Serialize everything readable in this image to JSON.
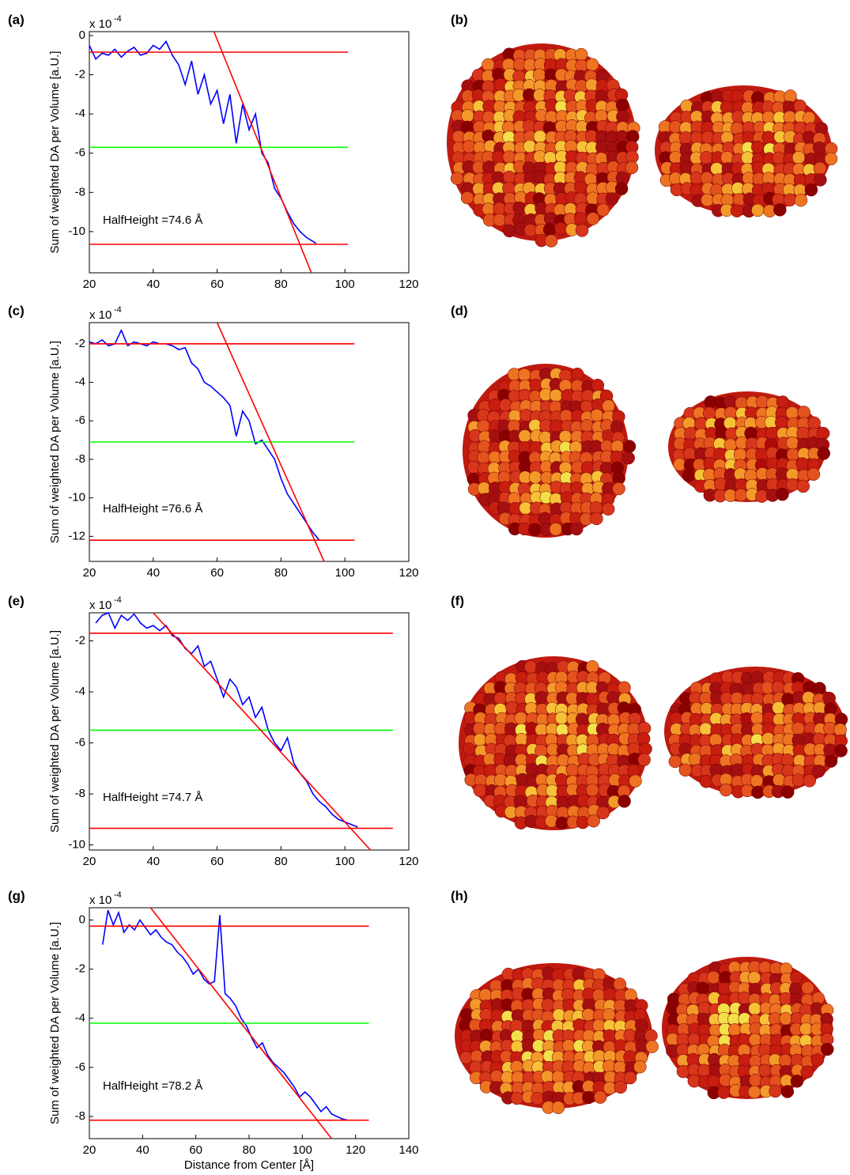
{
  "chart_data": [
    {
      "type": "line",
      "panel": "(a)",
      "ylabel": "Sum of weighted DA per Volume [a.U.]",
      "y_scale": "x 10",
      "y_scale_exponent": "-4",
      "annotation": "HalfHeight =74.6 Å",
      "xlim": [
        20,
        120
      ],
      "xticks": [
        20,
        40,
        60,
        80,
        100,
        120
      ],
      "ylim": [
        -12.1,
        0.2
      ],
      "yticks": [
        -10,
        -8,
        -6,
        -4,
        -2,
        0
      ],
      "series": [
        {
          "color": "#0000ff",
          "x": [
            20,
            22,
            24,
            26,
            28,
            30,
            32,
            34,
            36,
            38,
            40,
            42,
            44,
            46,
            48,
            50,
            52,
            54,
            56,
            58,
            60,
            62,
            64,
            66,
            68,
            70,
            72,
            74,
            76,
            78,
            80,
            82,
            84,
            86,
            88,
            90,
            91
          ],
          "values": [
            -0.5,
            -1.2,
            -0.9,
            -1.0,
            -0.7,
            -1.1,
            -0.8,
            -0.6,
            -1.0,
            -0.9,
            -0.5,
            -0.7,
            -0.3,
            -1.0,
            -1.5,
            -2.5,
            -1.3,
            -3.0,
            -2.0,
            -3.5,
            -2.8,
            -4.5,
            -3.0,
            -5.5,
            -3.5,
            -4.8,
            -4.0,
            -6.0,
            -6.5,
            -7.8,
            -8.3,
            -9.0,
            -9.6,
            -10.0,
            -10.3,
            -10.5,
            -10.6
          ]
        },
        {
          "color": "#ff0000",
          "x": [
            20,
            101
          ],
          "values": [
            -0.85,
            -0.85
          ]
        },
        {
          "color": "#ff0000",
          "x": [
            20,
            101
          ],
          "values": [
            -10.65,
            -10.65
          ]
        },
        {
          "color": "#00ff00",
          "x": [
            20,
            101
          ],
          "values": [
            -5.7,
            -5.7
          ]
        },
        {
          "color": "#ff0000",
          "x": [
            59,
            89.5
          ],
          "values": [
            0.2,
            -12.1
          ]
        }
      ]
    },
    {
      "type": "line",
      "panel": "(c)",
      "ylabel": "Sum of weighted DA per Volume [a.U.]",
      "y_scale": "x 10",
      "y_scale_exponent": "-4",
      "annotation": "HalfHeight =76.6 Å",
      "xlim": [
        20,
        120
      ],
      "xticks": [
        20,
        40,
        60,
        80,
        100,
        120
      ],
      "ylim": [
        -13.3,
        -0.9
      ],
      "yticks": [
        -12,
        -10,
        -8,
        -6,
        -4,
        -2
      ],
      "series": [
        {
          "color": "#0000ff",
          "x": [
            20,
            22,
            24,
            26,
            28,
            30,
            32,
            34,
            36,
            38,
            40,
            42,
            44,
            46,
            48,
            50,
            52,
            54,
            56,
            58,
            60,
            62,
            64,
            66,
            68,
            70,
            72,
            74,
            76,
            78,
            80,
            82,
            84,
            86,
            88,
            90,
            92
          ],
          "values": [
            -1.9,
            -2.0,
            -1.8,
            -2.1,
            -2.0,
            -1.3,
            -2.1,
            -1.9,
            -2.0,
            -2.1,
            -1.9,
            -2.0,
            -2.0,
            -2.1,
            -2.3,
            -2.2,
            -3.0,
            -3.3,
            -4.0,
            -4.2,
            -4.5,
            -4.8,
            -5.2,
            -6.8,
            -5.5,
            -6.0,
            -7.2,
            -7.0,
            -7.5,
            -8.0,
            -9.0,
            -9.8,
            -10.3,
            -10.8,
            -11.3,
            -11.8,
            -12.2
          ]
        },
        {
          "color": "#ff0000",
          "x": [
            20,
            103
          ],
          "values": [
            -2.0,
            -2.0
          ]
        },
        {
          "color": "#ff0000",
          "x": [
            20,
            103
          ],
          "values": [
            -12.2,
            -12.2
          ]
        },
        {
          "color": "#00ff00",
          "x": [
            20,
            103
          ],
          "values": [
            -7.1,
            -7.1
          ]
        },
        {
          "color": "#ff0000",
          "x": [
            60,
            93.5
          ],
          "values": [
            -0.9,
            -13.3
          ]
        }
      ]
    },
    {
      "type": "line",
      "panel": "(e)",
      "ylabel": "Sum of weighted DA per Volume [a.U.]",
      "y_scale": "x 10",
      "y_scale_exponent": "-4",
      "annotation": "HalfHeight =74.7 Å",
      "xlim": [
        20,
        120
      ],
      "xticks": [
        20,
        40,
        60,
        80,
        100,
        120
      ],
      "ylim": [
        -10.2,
        -0.9
      ],
      "yticks": [
        -10,
        -8,
        -6,
        -4,
        -2
      ],
      "series": [
        {
          "color": "#0000ff",
          "x": [
            22,
            24,
            26,
            28,
            30,
            32,
            34,
            36,
            38,
            40,
            42,
            44,
            46,
            48,
            50,
            52,
            54,
            56,
            58,
            60,
            62,
            64,
            66,
            68,
            70,
            72,
            74,
            76,
            78,
            80,
            82,
            84,
            86,
            88,
            90,
            92,
            94,
            96,
            98,
            100,
            102,
            104
          ],
          "values": [
            -1.3,
            -1.0,
            -0.9,
            -1.5,
            -1.0,
            -1.2,
            -0.95,
            -1.3,
            -1.5,
            -1.4,
            -1.6,
            -1.4,
            -1.8,
            -1.9,
            -2.3,
            -2.5,
            -2.2,
            -3.0,
            -2.8,
            -3.5,
            -4.2,
            -3.5,
            -3.8,
            -4.5,
            -4.2,
            -5.0,
            -4.6,
            -5.5,
            -6.0,
            -6.3,
            -5.8,
            -6.8,
            -7.2,
            -7.5,
            -8.0,
            -8.3,
            -8.5,
            -8.8,
            -9.0,
            -9.1,
            -9.2,
            -9.3
          ]
        },
        {
          "color": "#ff0000",
          "x": [
            20,
            115
          ],
          "values": [
            -1.7,
            -1.7
          ]
        },
        {
          "color": "#ff0000",
          "x": [
            20,
            115
          ],
          "values": [
            -9.35,
            -9.35
          ]
        },
        {
          "color": "#00ff00",
          "x": [
            20,
            115
          ],
          "values": [
            -5.5,
            -5.5
          ]
        },
        {
          "color": "#ff0000",
          "x": [
            40,
            108
          ],
          "values": [
            -0.9,
            -10.2
          ]
        }
      ]
    },
    {
      "type": "line",
      "panel": "(g)",
      "ylabel": "Sum of weighted DA per Volume [a.U.]",
      "y_scale": "x 10",
      "y_scale_exponent": "-4",
      "annotation": "HalfHeight =78.2 Å",
      "xlabel": "Distance from Center [Å]",
      "xlim": [
        20,
        140
      ],
      "xticks": [
        20,
        40,
        60,
        80,
        100,
        120,
        140
      ],
      "ylim": [
        -8.9,
        0.5
      ],
      "yticks": [
        -8,
        -6,
        -4,
        -2,
        0
      ],
      "series": [
        {
          "color": "#0000ff",
          "x": [
            25,
            27,
            29,
            31,
            33,
            35,
            37,
            39,
            41,
            43,
            45,
            47,
            49,
            51,
            53,
            55,
            57,
            59,
            61,
            63,
            65,
            67,
            69,
            71,
            73,
            75,
            77,
            79,
            81,
            83,
            85,
            87,
            89,
            91,
            93,
            95,
            97,
            99,
            101,
            103,
            105,
            107,
            109,
            111,
            113,
            115,
            117
          ],
          "values": [
            -1.0,
            0.4,
            -0.2,
            0.3,
            -0.5,
            -0.2,
            -0.4,
            0.0,
            -0.3,
            -0.6,
            -0.4,
            -0.7,
            -0.9,
            -1.0,
            -1.3,
            -1.5,
            -1.8,
            -2.2,
            -2.0,
            -2.4,
            -2.6,
            -2.5,
            0.2,
            -3.0,
            -3.2,
            -3.5,
            -4.0,
            -4.3,
            -4.8,
            -5.2,
            -5.0,
            -5.5,
            -5.8,
            -6.0,
            -6.2,
            -6.5,
            -6.8,
            -7.2,
            -7.0,
            -7.2,
            -7.5,
            -7.8,
            -7.6,
            -7.9,
            -8.0,
            -8.1,
            -8.15
          ]
        },
        {
          "color": "#ff0000",
          "x": [
            20,
            125
          ],
          "values": [
            -0.25,
            -0.25
          ]
        },
        {
          "color": "#ff0000",
          "x": [
            20,
            125
          ],
          "values": [
            -8.15,
            -8.15
          ]
        },
        {
          "color": "#00ff00",
          "x": [
            20,
            125
          ],
          "values": [
            -4.2,
            -4.2
          ]
        },
        {
          "color": "#ff0000",
          "x": [
            43,
            111
          ],
          "values": [
            0.5,
            -8.9
          ]
        }
      ]
    }
  ],
  "image_panels": [
    {
      "label": "(b)"
    },
    {
      "label": "(d)"
    },
    {
      "label": "(f)"
    },
    {
      "label": "(h)"
    }
  ]
}
